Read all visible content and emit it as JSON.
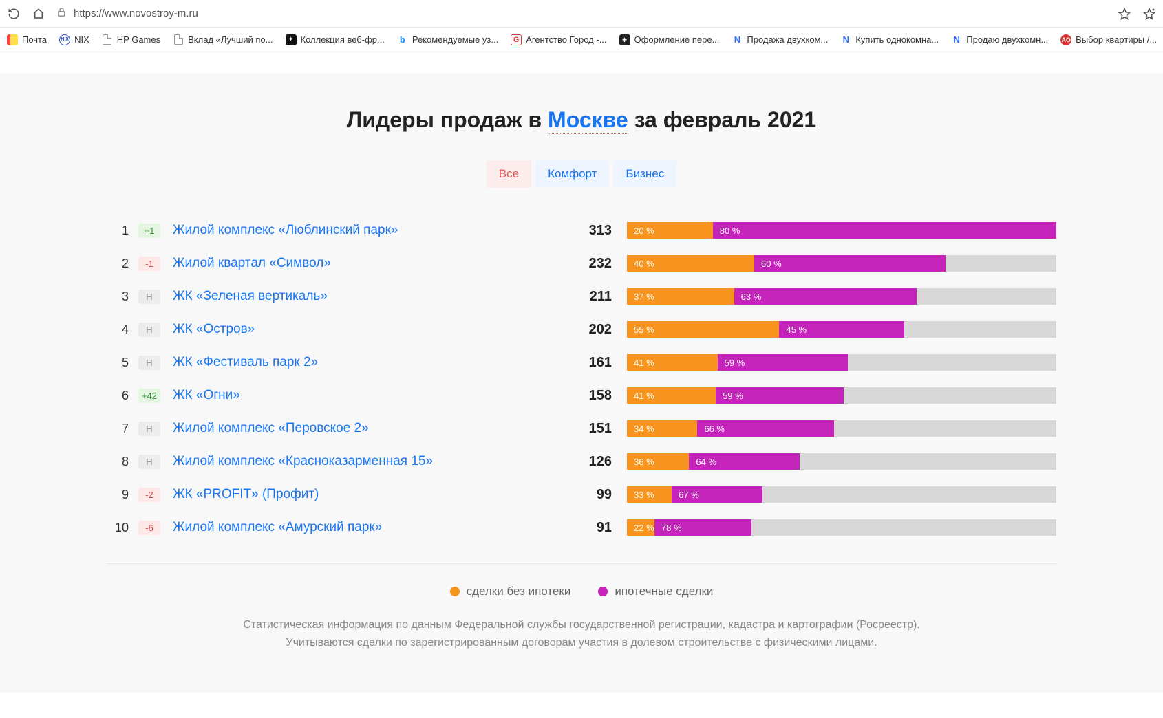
{
  "chrome": {
    "url": "https://www.novostroy-m.ru"
  },
  "bookmarks": [
    {
      "label": "Почта",
      "icon": "yandex",
      "color": "#ffcc00"
    },
    {
      "label": "NIX",
      "icon": "nix",
      "color": "#2a4fbf"
    },
    {
      "label": "HP Games",
      "icon": "page"
    },
    {
      "label": "Вклад «Лучший по...",
      "icon": "page"
    },
    {
      "label": "Коллекция веб-фр...",
      "icon": "black",
      "color": "#111"
    },
    {
      "label": "Рекомендуемые уз...",
      "icon": "bing",
      "color": "#0a84ff"
    },
    {
      "label": "Агентство Город -...",
      "icon": "g",
      "color": "#d33"
    },
    {
      "label": "Оформление пере...",
      "icon": "plus",
      "color": "#222"
    },
    {
      "label": "Продажа двухком...",
      "icon": "n",
      "color": "#2f6bff"
    },
    {
      "label": "Купить однокомна...",
      "icon": "n",
      "color": "#2f6bff"
    },
    {
      "label": "Продаю двухкомн...",
      "icon": "n",
      "color": "#2f6bff"
    },
    {
      "label": "Выбор квартиры /...",
      "icon": "ao",
      "color": "#d33"
    }
  ],
  "title": {
    "before": "Лидеры продаж в ",
    "city": "Москве",
    "after": " за февраль 2021"
  },
  "tabs": [
    {
      "label": "Все",
      "active": true
    },
    {
      "label": "Комфорт",
      "active": false
    },
    {
      "label": "Бизнес",
      "active": false
    }
  ],
  "chart": {
    "max_count": 313,
    "colors": {
      "track": "#d8d8d8",
      "orange": "#f7941d",
      "magenta": "#c524bb",
      "link": "#1976f2"
    },
    "rows": [
      {
        "rank": 1,
        "delta": "+1",
        "delta_type": "up",
        "name": "Жилой комплекс «Люблинский парк»",
        "count": 313,
        "pct_orange": 20,
        "pct_magenta": 80
      },
      {
        "rank": 2,
        "delta": "-1",
        "delta_type": "down",
        "name": "Жилой квартал «Символ»",
        "count": 232,
        "pct_orange": 40,
        "pct_magenta": 60
      },
      {
        "rank": 3,
        "delta": "Н",
        "delta_type": "new",
        "name": "ЖК «Зеленая вертикаль»",
        "count": 211,
        "pct_orange": 37,
        "pct_magenta": 63
      },
      {
        "rank": 4,
        "delta": "Н",
        "delta_type": "new",
        "name": "ЖК «Остров»",
        "count": 202,
        "pct_orange": 55,
        "pct_magenta": 45
      },
      {
        "rank": 5,
        "delta": "Н",
        "delta_type": "new",
        "name": "ЖК «Фестиваль парк 2»",
        "count": 161,
        "pct_orange": 41,
        "pct_magenta": 59
      },
      {
        "rank": 6,
        "delta": "+42",
        "delta_type": "up",
        "name": "ЖК «Огни»",
        "count": 158,
        "pct_orange": 41,
        "pct_magenta": 59
      },
      {
        "rank": 7,
        "delta": "Н",
        "delta_type": "new",
        "name": "Жилой комплекс «Перовское 2»",
        "count": 151,
        "pct_orange": 34,
        "pct_magenta": 66
      },
      {
        "rank": 8,
        "delta": "Н",
        "delta_type": "new",
        "name": "Жилой комплекс «Красноказарменная 15»",
        "count": 126,
        "pct_orange": 36,
        "pct_magenta": 64
      },
      {
        "rank": 9,
        "delta": "-2",
        "delta_type": "down",
        "name": "ЖК «PROFIT» (Профит)",
        "count": 99,
        "pct_orange": 33,
        "pct_magenta": 67
      },
      {
        "rank": 10,
        "delta": "-6",
        "delta_type": "down",
        "name": "Жилой комплекс «Амурский парк»",
        "count": 91,
        "pct_orange": 22,
        "pct_magenta": 78
      }
    ]
  },
  "legend": {
    "orange": "сделки без ипотеки",
    "magenta": "ипотечные сделки"
  },
  "disclaimer": {
    "line1": "Статистическая информация по данным Федеральной службы государственной регистрации, кадастра и картографии (Росреестр).",
    "line2": "Учитываются сделки по зарегистрированным договорам участия в долевом строительстве с физическими лицами."
  }
}
